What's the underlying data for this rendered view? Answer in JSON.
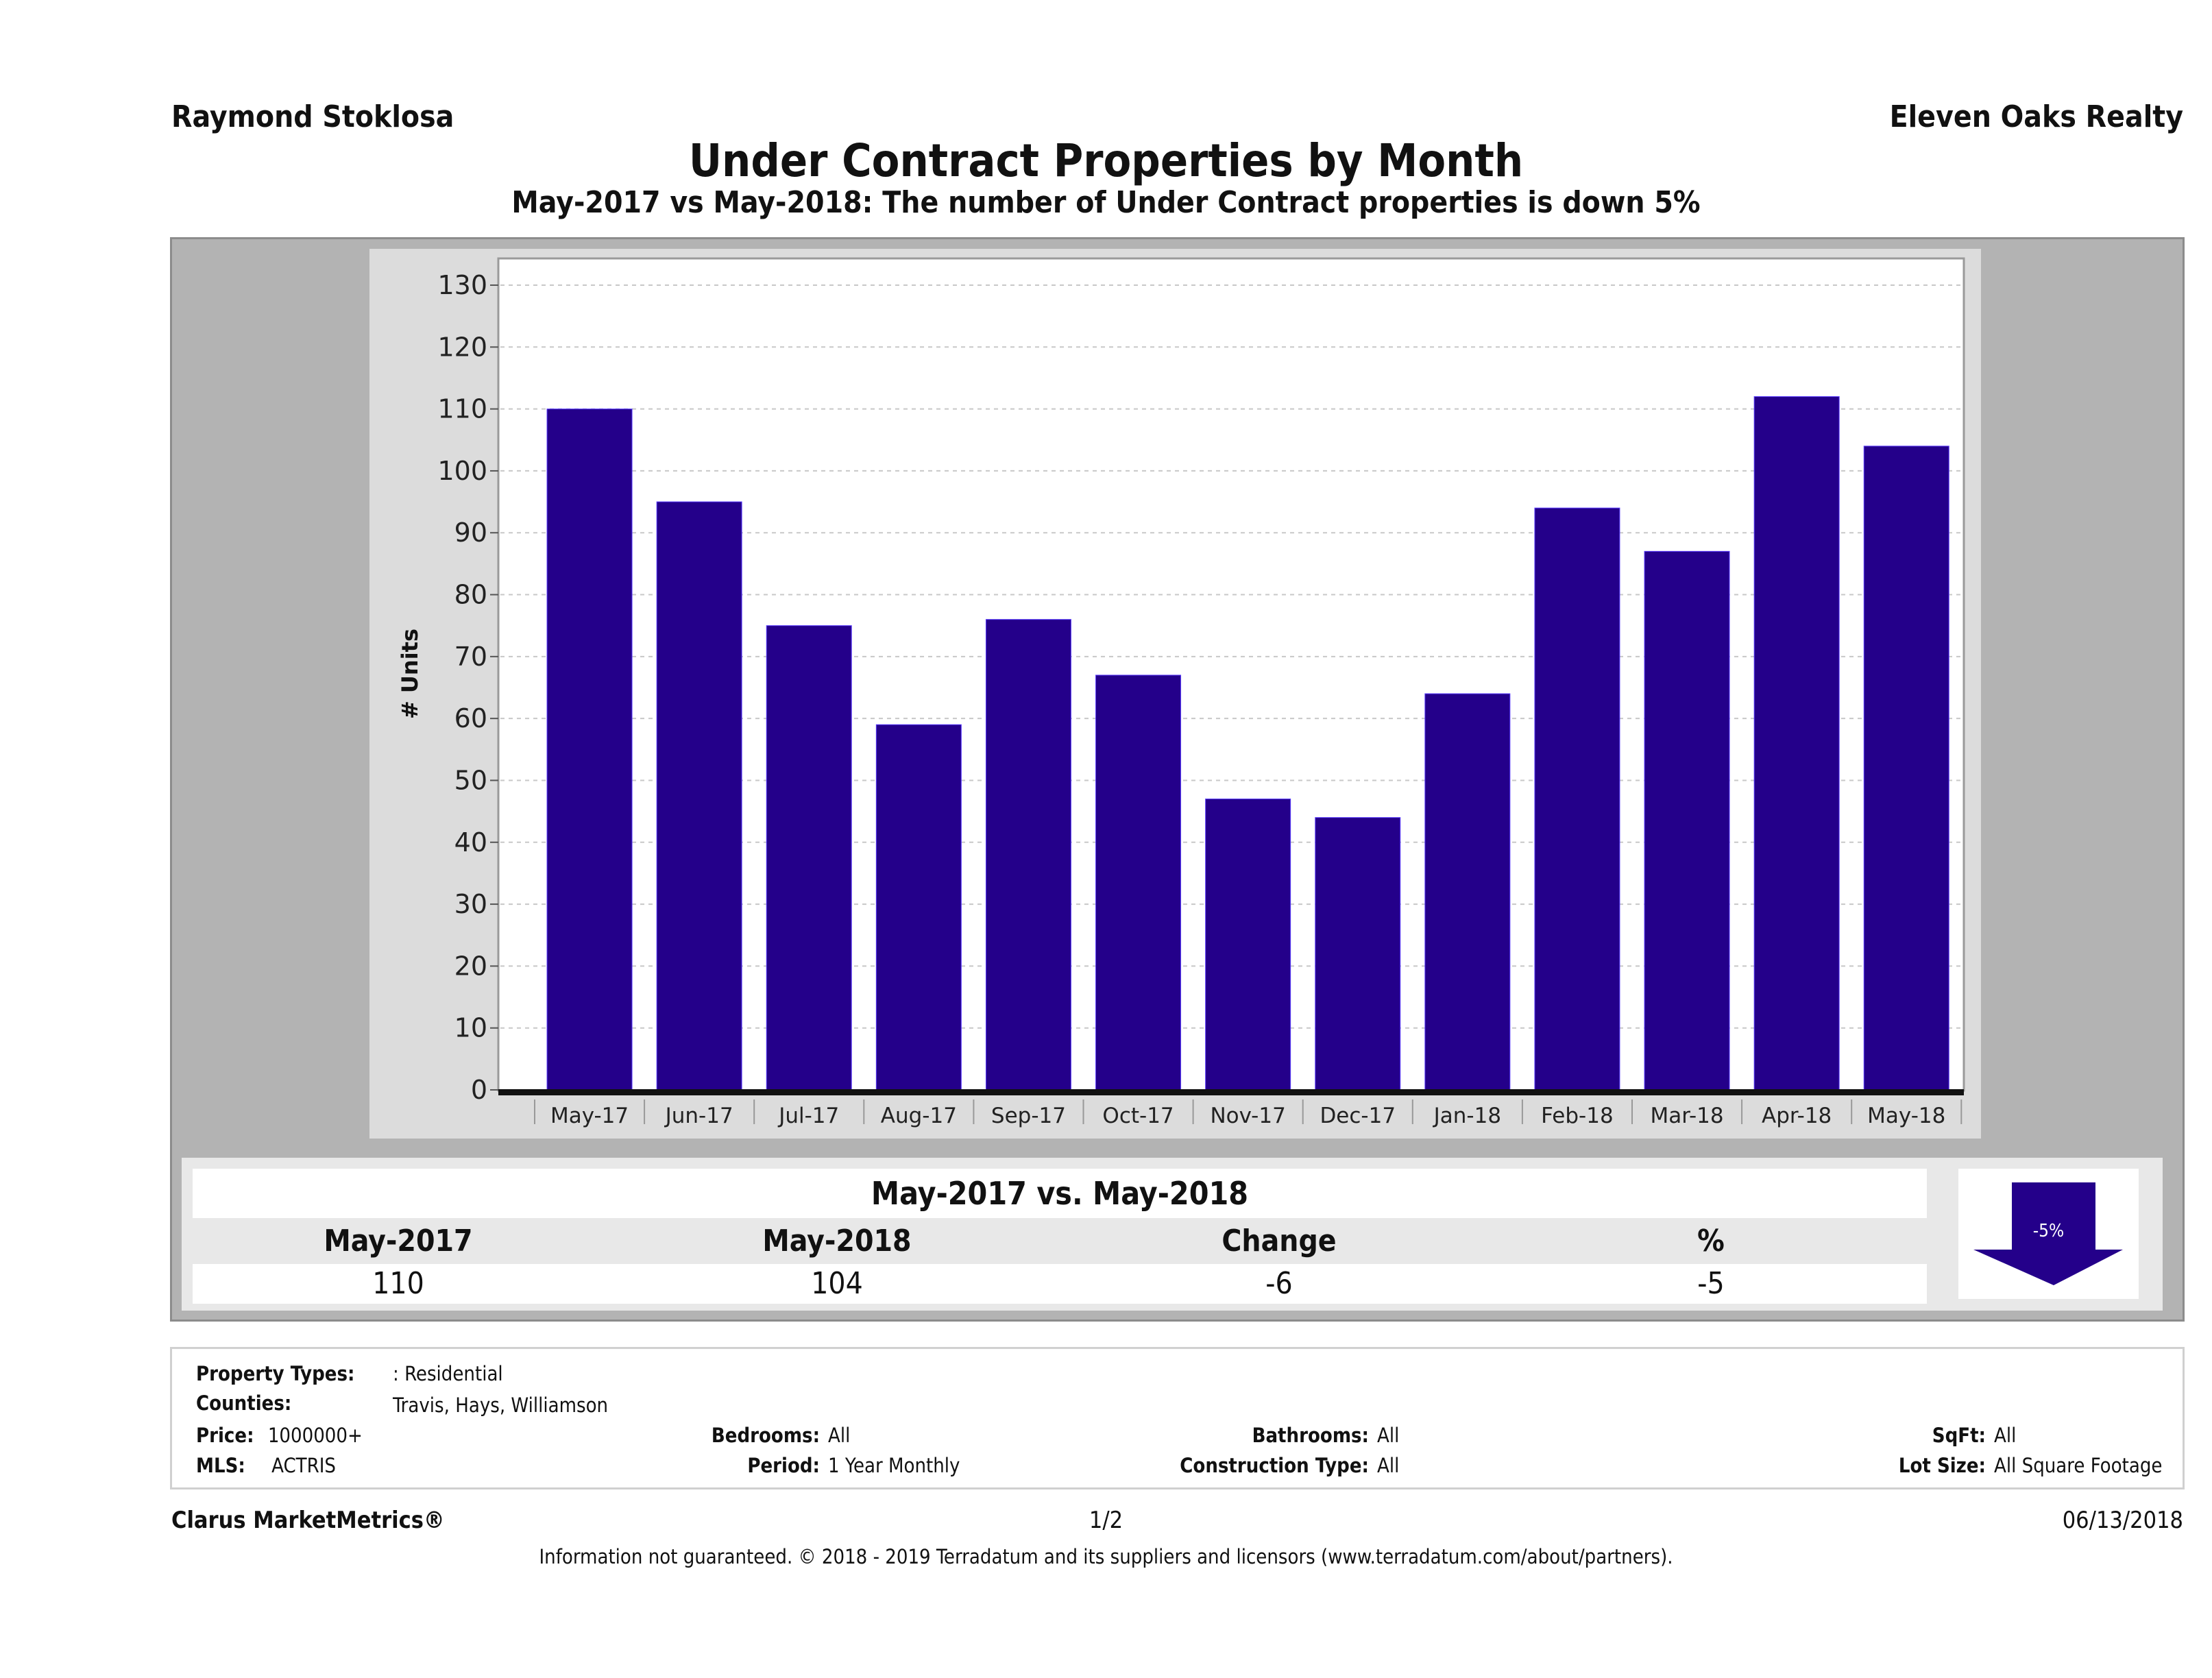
{
  "header": {
    "agent_name": "Raymond Stoklosa",
    "brokerage": "Eleven Oaks Realty",
    "title": "Under Contract Properties by Month",
    "subtitle": "May-2017 vs May-2018: The number of Under Contract  properties is down 5%"
  },
  "chart_data": {
    "type": "bar",
    "title": "Under Contract Properties by Month",
    "xlabel": "",
    "ylabel": "# Units",
    "categories": [
      "May-17",
      "Jun-17",
      "Jul-17",
      "Aug-17",
      "Sep-17",
      "Oct-17",
      "Nov-17",
      "Dec-17",
      "Jan-18",
      "Feb-18",
      "Mar-18",
      "Apr-18",
      "May-18"
    ],
    "values": [
      110,
      95,
      75,
      59,
      76,
      67,
      47,
      44,
      64,
      94,
      87,
      112,
      104
    ],
    "ylim": [
      0,
      130
    ],
    "yticks": [
      0,
      10,
      20,
      30,
      40,
      50,
      60,
      70,
      80,
      90,
      100,
      110,
      120,
      130
    ],
    "grid": true,
    "legend": "none",
    "bar_color": "#24008a"
  },
  "summary": {
    "title": "May-2017 vs. May-2018",
    "headers": [
      "May-2017",
      "May-2018",
      "Change",
      "%"
    ],
    "values": [
      "110",
      "104",
      "-6",
      "-5"
    ],
    "arrow_label": "-5%",
    "arrow_direction": "down",
    "arrow_color": "#24008a"
  },
  "filters": {
    "property_types": {
      "label": "Property Types:",
      "value": ": Residential"
    },
    "counties": {
      "label": "Counties:",
      "value": "Travis, Hays, Williamson"
    },
    "price": {
      "label": "Price:",
      "value": "1000000+"
    },
    "mls": {
      "label": "MLS:",
      "value": "ACTRIS"
    },
    "bedrooms": {
      "label": "Bedrooms:",
      "value": "All"
    },
    "period": {
      "label": "Period:",
      "value": "1 Year Monthly"
    },
    "bathrooms": {
      "label": "Bathrooms:",
      "value": "All"
    },
    "construction_type": {
      "label": "Construction Type:",
      "value": "All"
    },
    "sqft": {
      "label": "SqFt:",
      "value": "All"
    },
    "lot_size": {
      "label": "Lot Size:",
      "value": "All Square Footage"
    }
  },
  "footer": {
    "brand": "Clarus MarketMetrics®",
    "page": "1/2",
    "date": "06/13/2018",
    "disclaimer": "Information not guaranteed. © 2018 - 2019 Terradatum and its suppliers and licensors (www.terradatum.com/about/partners)."
  }
}
